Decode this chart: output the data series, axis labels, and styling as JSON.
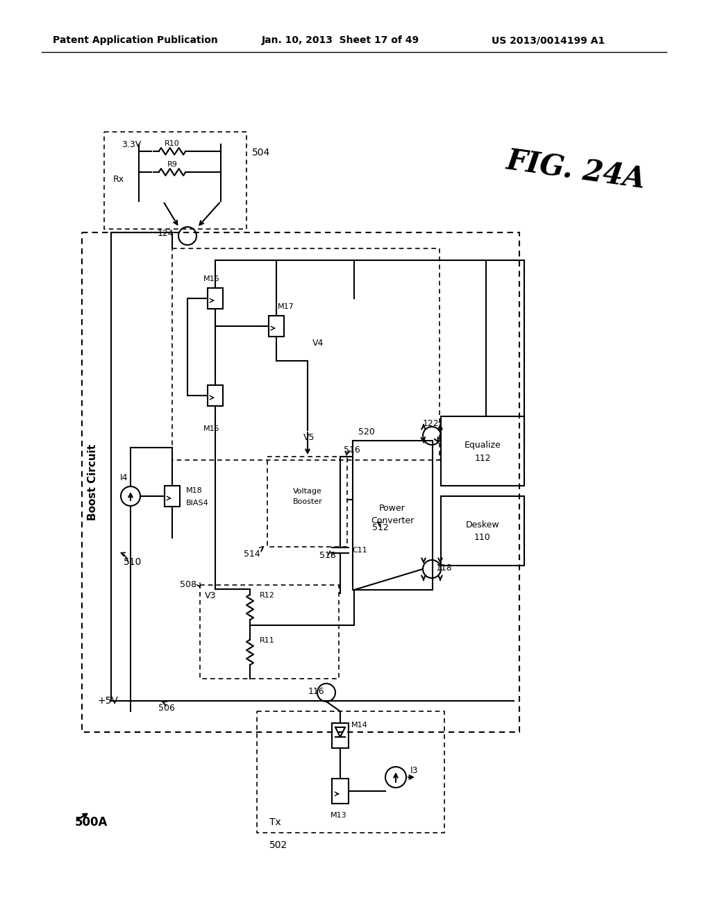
{
  "bg_color": "#ffffff",
  "header_left": "Patent Application Publication",
  "header_mid": "Jan. 10, 2013  Sheet 17 of 49",
  "header_right": "US 2013/0014199 A1",
  "fig_label": "FIG. 24A",
  "circuit_label": "500A",
  "title_boost": "Boost Circuit",
  "label_510": "510",
  "label_504": "504",
  "label_502": "502",
  "label_506": "506",
  "label_508": "508",
  "label_512": "512",
  "label_514": "514",
  "label_516": "516",
  "label_518": "518",
  "label_520": "520",
  "label_122": "122",
  "label_124": "124",
  "label_116": "116",
  "label_118": "118",
  "label_110": "110",
  "label_112": "112"
}
